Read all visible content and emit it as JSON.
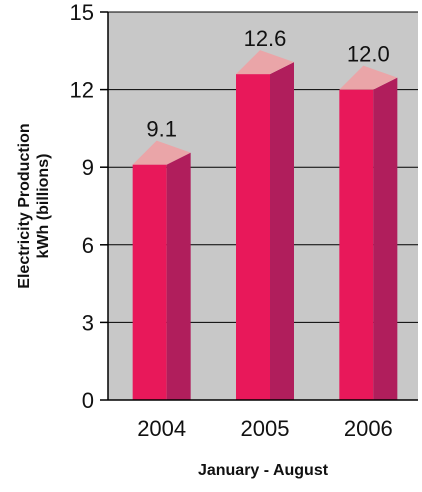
{
  "chart_data": {
    "type": "bar",
    "categories": [
      "2004",
      "2005",
      "2006"
    ],
    "values": [
      9.1,
      12.6,
      12.0
    ],
    "data_labels": [
      "9.1",
      "12.6",
      "12.0"
    ],
    "title": "",
    "ylabel_line1": "Electricity Production",
    "ylabel_line2": "kWh (billions)",
    "xlabel": "January - August",
    "ylim": [
      0,
      15
    ],
    "yticks": [
      0,
      3,
      6,
      9,
      12,
      15
    ],
    "ytick_labels": [
      "0",
      "3",
      "6",
      "9",
      "12",
      "15"
    ],
    "grid": true,
    "style": "3d-bars",
    "colors": {
      "plot_bg": "#c8c8c8",
      "bar_front": "#e8185a",
      "bar_side": "#b01e5c",
      "bar_top": "#eaa5a8",
      "axis": "#000000",
      "grid": "#000000"
    }
  }
}
